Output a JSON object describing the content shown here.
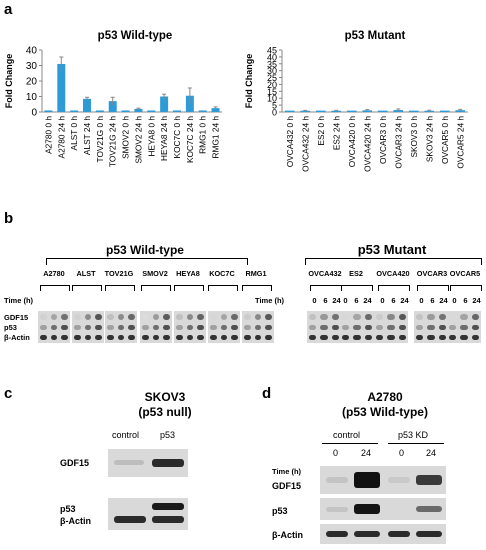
{
  "panels": {
    "a": "a",
    "b": "b",
    "c": "c",
    "d": "d"
  },
  "chart_data": [
    {
      "type": "bar",
      "title": "p53 Wild-type",
      "ylabel": "Fold Change",
      "ylim": [
        0,
        40
      ],
      "yticks": [
        0,
        10,
        20,
        30,
        40
      ],
      "categories": [
        "A2780 0 h",
        "A2780 24 h",
        "ALST 0 h",
        "ALST 24 h",
        "TOV21G 0 h",
        "TOV21G 24 h",
        "SMOV2 0 h",
        "SMOV2 24 h",
        "HEYA8 0 h",
        "HEYA8 24 h",
        "KOC7C 0 h",
        "KOC7C 24 h",
        "RMG1 0 h",
        "RMG1 24 h"
      ],
      "values": [
        1,
        31,
        1,
        8.5,
        1,
        7,
        1,
        2,
        1,
        10,
        1,
        10.5,
        1,
        2.5
      ],
      "errors": [
        0,
        4.5,
        0,
        1,
        0,
        2.5,
        0,
        0.5,
        0,
        1.5,
        0,
        5,
        0,
        0.8
      ],
      "color": "#2e9ad6"
    },
    {
      "type": "bar",
      "title": "p53 Mutant",
      "ylabel": "Fold Change",
      "ylim": [
        0,
        45
      ],
      "yticks": [
        0,
        5,
        10,
        15,
        20,
        25,
        30,
        35,
        40,
        45
      ],
      "categories": [
        "OVCA432 0 h",
        "OVCA432 24 h",
        "ES2 0 h",
        "ES2 24 h",
        "OVCA420 0 h",
        "OVCA420 24 h",
        "OVCAR3 0 h",
        "OVCAR3 24 h",
        "SKOV3 0 h",
        "SKOV3 24 h",
        "OVCAR5 0 h",
        "OVCAR5 24 h"
      ],
      "values": [
        1,
        0.9,
        1,
        0.9,
        1,
        1.2,
        1,
        1.4,
        1,
        0.9,
        1,
        1.3
      ],
      "errors": [
        0,
        0.3,
        0,
        0.3,
        0,
        0.5,
        0,
        0.8,
        0,
        0.4,
        0,
        0.6
      ],
      "color": "#2e9ad6"
    }
  ],
  "panel_b": {
    "wt_title": "p53 Wild-type",
    "mut_title": "p53 Mutant",
    "wt_lines": [
      "A2780",
      "ALST",
      "TOV21G",
      "SMOV2",
      "HEYA8",
      "KOC7C",
      "RMG1"
    ],
    "mut_lines": [
      "OVCA432",
      "ES2",
      "OVCA420",
      "OVCAR3",
      "OVCAR5"
    ],
    "time_label": "Time (h)",
    "times": [
      "0",
      "6",
      "24"
    ],
    "rows": [
      "GDF15",
      "p53",
      "β-Actin"
    ]
  },
  "panel_c": {
    "title_line1": "SKOV3",
    "title_line2": "(p53 null)",
    "cols": [
      "control",
      "p53"
    ],
    "rows": [
      "GDF15",
      "p53",
      "β-Actin"
    ]
  },
  "panel_d": {
    "title_line1": "A2780",
    "title_line2": "(p53 Wild-type)",
    "groups": [
      "control",
      "p53 KD"
    ],
    "time_label": "Time (h)",
    "times": [
      "0",
      "24",
      "0",
      "24"
    ],
    "rows": [
      "GDF15",
      "p53",
      "β-Actin"
    ]
  }
}
